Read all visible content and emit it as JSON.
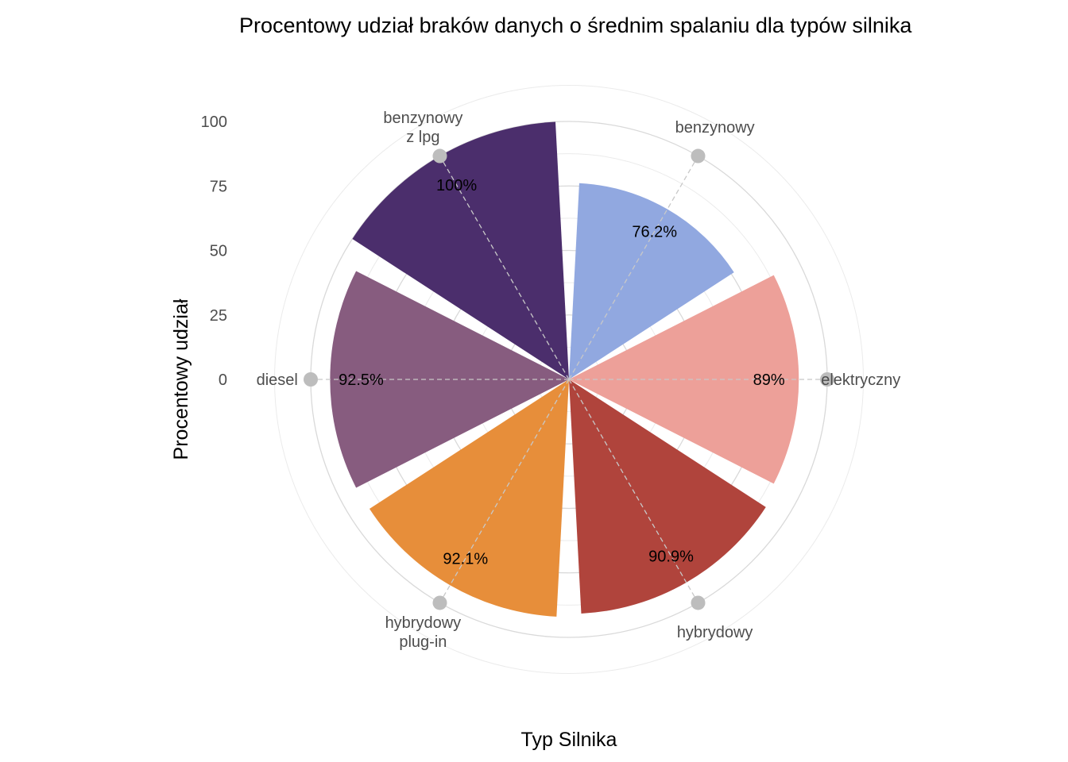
{
  "chart_data": {
    "type": "bar",
    "coord": "polar",
    "title": "Procentowy udział braków danych o średnim spalaniu dla typów silnika",
    "xlabel": "Typ Silnika",
    "ylabel": "Procentowy udział",
    "ylim": [
      0,
      100
    ],
    "yticks": [
      "0",
      "25",
      "50",
      "75",
      "100"
    ],
    "categories": [
      {
        "label": [
          "benzynowy"
        ],
        "value": 76.2,
        "value_label": "76.2%",
        "color": "#91a8e0"
      },
      {
        "label": [
          "elektryczny"
        ],
        "value": 89.0,
        "value_label": "89%",
        "color": "#eda099"
      },
      {
        "label": [
          "hybrydowy"
        ],
        "value": 90.9,
        "value_label": "90.9%",
        "color": "#b0443c"
      },
      {
        "label": [
          "hybrydowy",
          "plug-in"
        ],
        "value": 92.1,
        "value_label": "92.1%",
        "color": "#e78e3a"
      },
      {
        "label": [
          "diesel"
        ],
        "value": 92.5,
        "value_label": "92.5%",
        "color": "#875c7f"
      },
      {
        "label": [
          "benzynowy",
          "z lpg"
        ],
        "value": 100.0,
        "value_label": "100%",
        "color": "#4b2e6c"
      }
    ],
    "grid": true
  }
}
